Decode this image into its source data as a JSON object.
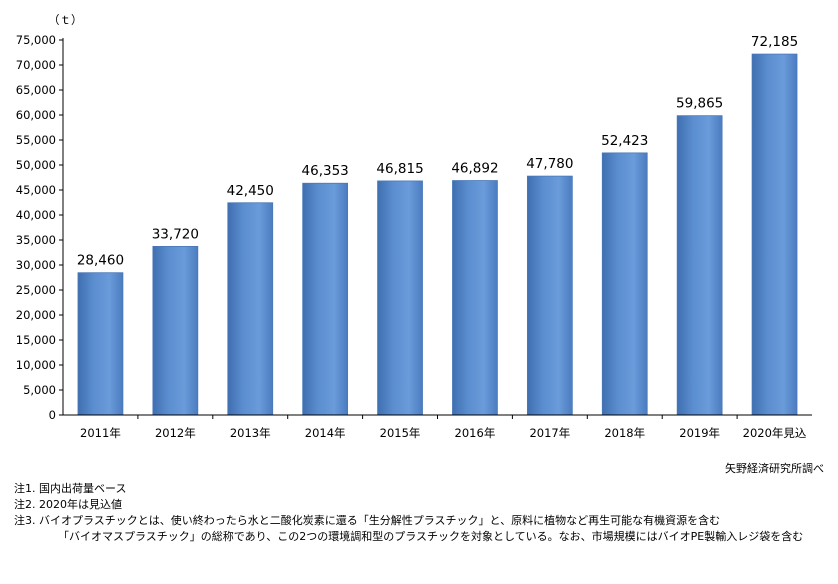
{
  "chart_data": {
    "type": "bar",
    "title": "",
    "xlabel": "",
    "ylabel": "",
    "unit_label": "（ｔ）",
    "categories": [
      "2011年",
      "2012年",
      "2013年",
      "2014年",
      "2015年",
      "2016年",
      "2017年",
      "2018年",
      "2019年",
      "2020年見込"
    ],
    "values": [
      28460,
      33720,
      42450,
      46353,
      46815,
      46892,
      47780,
      52423,
      59865,
      72185
    ],
    "value_labels": [
      "28,460",
      "33,720",
      "42,450",
      "46,353",
      "46,815",
      "46,892",
      "47,780",
      "52,423",
      "59,865",
      "72,185"
    ],
    "ylim": [
      0,
      75000
    ],
    "yticks": [
      "0",
      "5,000",
      "10,000",
      "15,000",
      "20,000",
      "25,000",
      "30,000",
      "35,000",
      "40,000",
      "45,000",
      "50,000",
      "55,000",
      "60,000",
      "65,000",
      "70,000",
      "75,000"
    ],
    "grid": false,
    "legend": "none",
    "bar_color": "#5b8ed0"
  },
  "source": "矢野経済研究所調べ",
  "notes": [
    "注1.  国内出荷量ベース",
    "注2.  2020年は見込値",
    "注3.  バイオプラスチックとは、使い終わったら水と二酸化炭素に還る「生分解性プラスチック」と、原料に植物など再生可能な有機資源を含む",
    "「バイオマスプラスチック」の総称であり、この2つの環境調和型のプラスチックを対象としている。なお、市場規模にはバイオPE製輸入レジ袋を含む"
  ]
}
